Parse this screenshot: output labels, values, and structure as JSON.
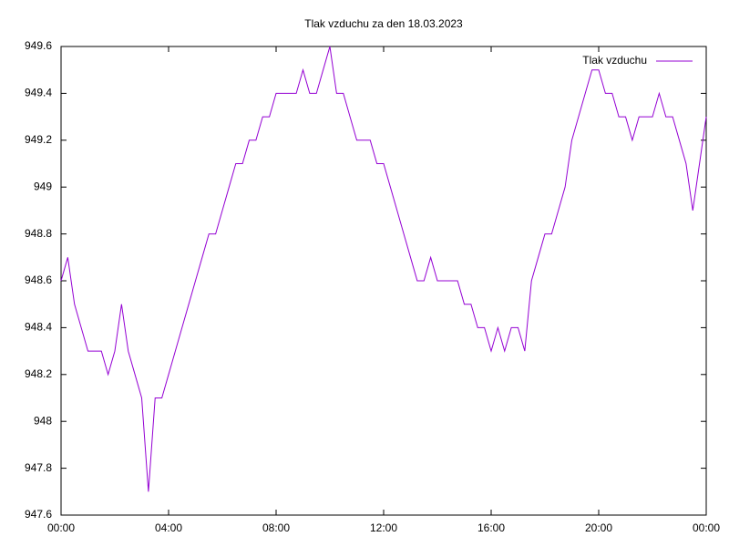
{
  "chart_data": {
    "type": "line",
    "title": "Tlak vzduchu za den 18.03.2023",
    "x": [
      0,
      0.25,
      0.5,
      0.75,
      1,
      1.25,
      1.5,
      1.75,
      2,
      2.25,
      2.5,
      2.75,
      3,
      3.25,
      3.5,
      3.75,
      4,
      4.25,
      4.5,
      4.75,
      5,
      5.25,
      5.5,
      5.75,
      6,
      6.25,
      6.5,
      6.75,
      7,
      7.25,
      7.5,
      7.75,
      8,
      8.25,
      8.5,
      8.75,
      9,
      9.25,
      9.5,
      9.75,
      10,
      10.25,
      10.5,
      10.75,
      11,
      11.25,
      11.5,
      11.75,
      12,
      12.25,
      12.5,
      12.75,
      13,
      13.25,
      13.5,
      13.75,
      14,
      14.25,
      14.5,
      14.75,
      15,
      15.25,
      15.5,
      15.75,
      16,
      16.25,
      16.5,
      16.75,
      17,
      17.25,
      17.5,
      17.75,
      18,
      18.25,
      18.5,
      18.75,
      19,
      19.25,
      19.5,
      19.75,
      20,
      20.25,
      20.5,
      20.75,
      21,
      21.25,
      21.5,
      21.75,
      22,
      22.25,
      22.5,
      22.75,
      23,
      23.25,
      23.5,
      23.75,
      24
    ],
    "series": [
      {
        "name": "Tlak vzduchu",
        "color": "#9400d3",
        "values": [
          948.6,
          948.7,
          948.5,
          948.4,
          948.3,
          948.3,
          948.3,
          948.2,
          948.3,
          948.5,
          948.3,
          948.2,
          948.1,
          947.7,
          948.1,
          948.1,
          948.2,
          948.3,
          948.4,
          948.5,
          948.6,
          948.7,
          948.8,
          948.8,
          948.9,
          949.0,
          949.1,
          949.1,
          949.2,
          949.2,
          949.3,
          949.3,
          949.4,
          949.4,
          949.4,
          949.4,
          949.5,
          949.4,
          949.4,
          949.5,
          949.6,
          949.4,
          949.4,
          949.3,
          949.2,
          949.2,
          949.2,
          949.1,
          949.1,
          949.0,
          948.9,
          948.8,
          948.7,
          948.6,
          948.6,
          948.7,
          948.6,
          948.6,
          948.6,
          948.6,
          948.5,
          948.5,
          948.4,
          948.4,
          948.3,
          948.4,
          948.3,
          948.4,
          948.4,
          948.3,
          948.6,
          948.7,
          948.8,
          948.8,
          948.9,
          949.0,
          949.2,
          949.3,
          949.4,
          949.5,
          949.5,
          949.4,
          949.4,
          949.3,
          949.3,
          949.2,
          949.3,
          949.3,
          949.3,
          949.4,
          949.3,
          949.3,
          949.2,
          949.1,
          948.9,
          949.1,
          949.3
        ]
      }
    ],
    "xlim": [
      0,
      24
    ],
    "xticks": [
      {
        "value": 0,
        "label": "00:00"
      },
      {
        "value": 4,
        "label": "04:00"
      },
      {
        "value": 8,
        "label": "08:00"
      },
      {
        "value": 12,
        "label": "12:00"
      },
      {
        "value": 16,
        "label": "16:00"
      },
      {
        "value": 20,
        "label": "20:00"
      },
      {
        "value": 24,
        "label": "00:00"
      }
    ],
    "ylim": [
      947.6,
      949.6
    ],
    "yticks": [
      947.6,
      947.8,
      948,
      948.2,
      948.4,
      948.6,
      948.8,
      949,
      949.2,
      949.4,
      949.6
    ],
    "legend": "top-right"
  }
}
